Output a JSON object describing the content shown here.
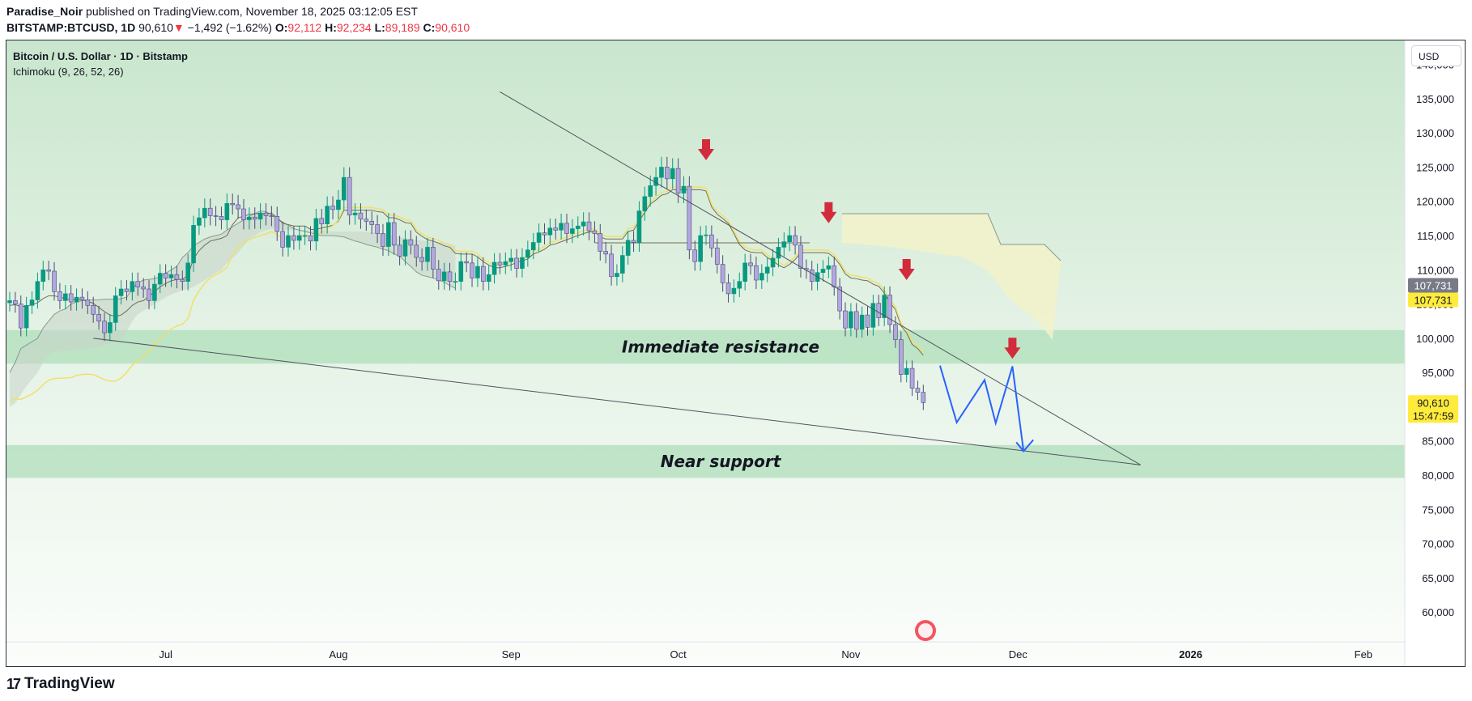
{
  "header": {
    "line1_author": "Paradise_Noir",
    "line1_rest": " published on TradingView.com, November 18, 2025 03:12:05 EST",
    "symbol": "BITSTAMP:BTCUSD, 1D",
    "last": "90,610",
    "change_arrow": "▼",
    "change": "−1,492 (−1.62%)",
    "o_label": "O:",
    "o": "92,112",
    "h_label": "H:",
    "h": "92,234",
    "l_label": "L:",
    "l": "89,189",
    "c_label": "C:",
    "c": "90,610"
  },
  "legend": {
    "title": "Bitcoin / U.S. Dollar · 1D · Bitstamp",
    "indicator": "Ichimoku (9, 26, 52, 26)"
  },
  "currency": "USD",
  "footer": {
    "logo": "17",
    "brand": "TradingView"
  },
  "colors": {
    "up": "#089981",
    "down": "#b2a7e0",
    "arrow": "#d22c3c",
    "projection": "#2962ff",
    "zone": "#b6e0c0",
    "cloud_gray": "#c7d3c9",
    "cloud_yellow": "#f4f3c8",
    "price_badge": "#ffeb3b"
  },
  "chart_data": {
    "type": "candlestick",
    "title": "Bitcoin / U.S. Dollar · 1D · Bitstamp",
    "ylim": [
      56000,
      143500
    ],
    "y_ticks": [
      140000,
      135000,
      130000,
      125000,
      120000,
      115000,
      110000,
      105000,
      100000,
      95000,
      90000,
      85000,
      80000,
      75000,
      70000,
      65000,
      60000
    ],
    "y_tick_labels": [
      "140,000",
      "135,000",
      "130,000",
      "125,000",
      "120,000",
      "115,000",
      "110,000",
      "105,000",
      "100,000",
      "95,000",
      "90,000",
      "85,000",
      "80,000",
      "75,000",
      "70,000",
      "65,000",
      "60,000"
    ],
    "x_ticks": [
      {
        "label": "Jul",
        "date": "2025-07-01"
      },
      {
        "label": "Aug",
        "date": "2025-08-01"
      },
      {
        "label": "Sep",
        "date": "2025-09-01"
      },
      {
        "label": "Oct",
        "date": "2025-10-01"
      },
      {
        "label": "Nov",
        "date": "2025-11-01"
      },
      {
        "label": "Dec",
        "date": "2025-12-01"
      },
      {
        "label": "2026",
        "date": "2026-01-01"
      },
      {
        "label": "Feb",
        "date": "2026-02-01"
      }
    ],
    "start_date": "2025-06-03",
    "closes": [
      105500,
      105000,
      101500,
      104800,
      105600,
      108300,
      110000,
      109800,
      106800,
      105500,
      106500,
      105300,
      106000,
      105600,
      104800,
      103500,
      102500,
      100800,
      102300,
      106200,
      107200,
      106800,
      108300,
      107500,
      107200,
      105500,
      107900,
      109500,
      108800,
      109300,
      108600,
      108300,
      111000,
      116500,
      117600,
      119000,
      117900,
      117800,
      117300,
      119700,
      119500,
      118900,
      117300,
      117700,
      117400,
      118300,
      117900,
      117800,
      115600,
      113300,
      115000,
      114300,
      115000,
      115000,
      114200,
      117500,
      116700,
      119300,
      118800,
      120200,
      123500,
      118000,
      118300,
      117400,
      117100,
      116600,
      115300,
      113400,
      116900,
      113600,
      112000,
      114400,
      113600,
      111800,
      111200,
      113300,
      110100,
      108400,
      109700,
      108300,
      108300,
      111200,
      111000,
      108800,
      110500,
      108300,
      109300,
      111100,
      110700,
      111200,
      111700,
      110200,
      111800,
      112900,
      114000,
      115400,
      115100,
      116100,
      115800,
      116800,
      115300,
      116000,
      116400,
      117000,
      115700,
      115300,
      112700,
      112300,
      109000,
      109500,
      112100,
      114300,
      114000,
      118600,
      120700,
      122300,
      123500,
      125000,
      123300,
      124800,
      121200,
      122200,
      112900,
      111200,
      115000,
      115100,
      113200,
      110800,
      108100,
      106500,
      107300,
      108300,
      111000,
      110600,
      108500,
      109500,
      110400,
      111700,
      113300,
      114100,
      115000,
      113600,
      110200,
      110000,
      108300,
      109600,
      110100,
      110600,
      107500,
      104000,
      101500,
      103900,
      101300,
      103400,
      101600,
      105100,
      103000,
      106300,
      102000,
      99800,
      94700,
      95600,
      92700,
      92100,
      90610
    ],
    "ichimoku": {
      "tenkan": [
        104800,
        104900,
        104600,
        104700,
        104900,
        105200,
        105800,
        106200,
        106200,
        106000,
        105800,
        105600,
        105700,
        105600,
        105400,
        105100,
        104500,
        103900,
        103400,
        103200,
        103400,
        104000,
        104800,
        105300,
        105500,
        106100,
        106800,
        107500,
        108000,
        108400,
        108600,
        108600,
        109200,
        111600,
        112800,
        113600,
        114200,
        114400,
        114600,
        115000,
        116600,
        117600,
        117800,
        118100,
        118200,
        118200,
        118200,
        118300,
        117600,
        116800,
        116600,
        116400,
        116400,
        116400,
        115900,
        115900,
        116100,
        116300,
        116500,
        117100,
        118700,
        118700,
        118700,
        118700,
        118700,
        118700,
        118500,
        118400,
        117600,
        117600,
        117300,
        116900,
        116800,
        115500,
        114900,
        114400,
        114200,
        113900,
        113500,
        113300,
        112400,
        112300,
        112300,
        112300,
        111900,
        111200,
        110700,
        110300,
        110300,
        110500,
        110700,
        111100,
        111300,
        111600,
        112300,
        112600,
        113000,
        113600,
        113800,
        114100,
        114400,
        114700,
        115000,
        115300,
        115500,
        115600,
        114800,
        114500,
        114500,
        114500,
        114500,
        115600,
        115800,
        117100,
        118400,
        119600,
        120200,
        120900,
        121100,
        121700,
        121700,
        121700,
        121700,
        121700,
        121700,
        121500,
        119200,
        118100,
        117500,
        116800,
        115300,
        113700,
        112900,
        112600,
        112500,
        112500,
        111800,
        111300,
        110700,
        110300,
        110800,
        111500,
        112500,
        112500,
        112500,
        112500,
        112500,
        112400,
        111800,
        110800,
        109400,
        108800,
        108700,
        108500,
        108400,
        107900,
        107600,
        106600,
        105200,
        104200,
        101800,
        100800,
        99100,
        98500,
        97500
      ],
      "kijun_note": "flat segment near 115,800 from Sep to late Oct, then declining",
      "cloud_span_a_top": [
        95000,
        96500,
        98500,
        99000,
        99500,
        100000,
        101500,
        102500,
        103500,
        104000,
        104300,
        105000,
        105300,
        105500,
        105600,
        105600,
        105600,
        105700,
        105700,
        105700,
        105800,
        106000,
        107200,
        108100,
        108500,
        108600,
        108700,
        109000,
        109500,
        110000,
        110500,
        111800,
        112500,
        113500,
        114000,
        114500,
        114800,
        115000,
        115200,
        115800,
        116300,
        116800,
        117300,
        117800,
        118200,
        118600,
        118500,
        118000,
        117500,
        117000,
        116500,
        116000,
        115800,
        115600,
        115400,
        115200,
        115000,
        115000,
        115000,
        114900,
        114800,
        114500,
        114200,
        114000,
        113700,
        113500,
        113300,
        113000,
        112800,
        112300,
        112000,
        111200,
        110500,
        109700,
        109200,
        109000,
        108800,
        108500,
        108200,
        107700,
        107300
      ],
      "cloud_span_b": [
        90000,
        90500,
        91800,
        93000,
        94000,
        95000,
        96500,
        97600,
        98000,
        98100,
        98200,
        98200,
        98300,
        98400,
        98500,
        98600,
        98700,
        99000,
        99200,
        99500,
        100000,
        101000,
        102500,
        103500,
        104000,
        104500,
        105000,
        105500,
        106000,
        106400,
        106700,
        107000,
        107200,
        107500,
        108000,
        108500,
        109000,
        109500,
        110000,
        111000,
        111700,
        112500,
        113500,
        114500,
        115000,
        115500,
        115800,
        116000,
        116000,
        115800,
        115800,
        115800,
        115800,
        115800,
        115800,
        115800,
        115700,
        115700,
        115600,
        115600,
        115600,
        115600,
        115600,
        115600,
        115500,
        115500,
        115400,
        115400,
        115200,
        115000,
        114800,
        114600,
        114500,
        114400,
        114300,
        114200,
        114100,
        114000,
        114000,
        113800,
        113500,
        113000,
        112700,
        112500,
        112400,
        112400,
        112300,
        112300,
        112300,
        112300,
        112300,
        112300,
        112300,
        112300,
        112300,
        112300,
        112300,
        112300,
        112300,
        112300,
        112300,
        112300,
        112300,
        112300,
        112300,
        112300,
        112300,
        112300,
        112300,
        112300,
        112300,
        112300,
        112300,
        112300,
        112300,
        112300,
        112300,
        112300,
        112300,
        112300,
        112300,
        112300,
        112300,
        112300,
        112300,
        112300,
        112300,
        112300,
        112300,
        112300,
        112300,
        112300,
        112300,
        112300,
        112300,
        112300,
        112300,
        112300,
        112300,
        112300,
        112300,
        112300,
        112300,
        112300,
        112300,
        112300,
        112300,
        112300,
        112300,
        112300,
        112300,
        112300,
        112300,
        112300
      ]
    },
    "zones": [
      {
        "label": "Immediate resistance",
        "y_top": 101200,
        "y_bottom": 96300
      },
      {
        "label": "Near support",
        "y_top": 84400,
        "y_bottom": 79600
      }
    ],
    "trendlines": [
      {
        "from": {
          "date": "2025-08-30",
          "y": 136000
        },
        "to": {
          "date": "2025-12-23",
          "y": 81500
        }
      },
      {
        "from": {
          "date": "2025-06-18",
          "y": 100000
        },
        "to": {
          "date": "2025-12-23",
          "y": 81500
        }
      }
    ],
    "arrows": [
      {
        "date": "2025-10-06",
        "y": 126000
      },
      {
        "date": "2025-10-28",
        "y": 116800
      },
      {
        "date": "2025-11-11",
        "y": 108500
      },
      {
        "date": "2025-11-30",
        "y": 97000
      }
    ],
    "projection": [
      {
        "date": "2025-11-17",
        "y": 96000
      },
      {
        "date": "2025-11-20",
        "y": 87700
      },
      {
        "date": "2025-11-25",
        "y": 93900
      },
      {
        "date": "2025-11-27",
        "y": 87600
      },
      {
        "date": "2025-11-30",
        "y": 95900
      },
      {
        "date": "2025-12-02",
        "y": 83500
      }
    ],
    "price_labels": [
      {
        "value": 107731,
        "text": "107,731",
        "style": "gray"
      },
      {
        "value": 107731,
        "text": "107,731",
        "style": "yellow"
      },
      {
        "value": 90610,
        "text": "90,610",
        "sub": "15:47:59",
        "style": "yellow"
      }
    ]
  }
}
